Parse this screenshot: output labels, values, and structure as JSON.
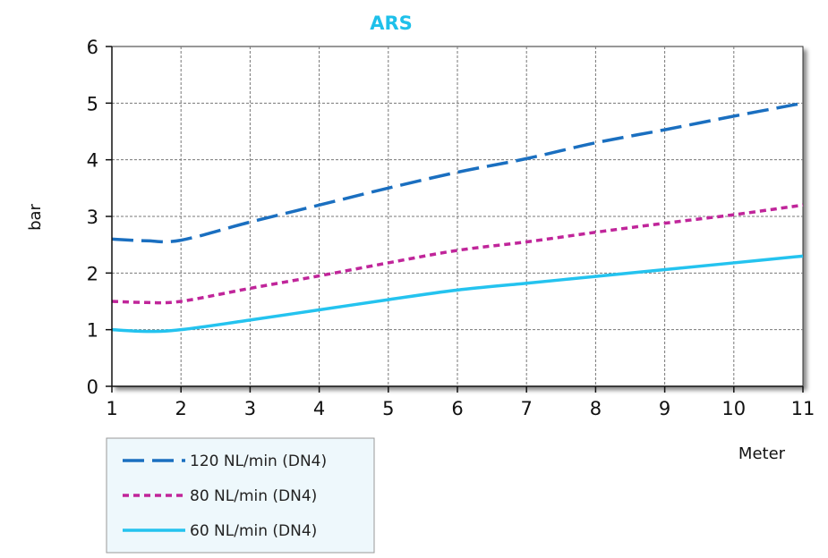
{
  "chart_data": {
    "type": "line",
    "title": "ARS",
    "title_color": "#1ec0ea",
    "xlabel": "Meter",
    "ylabel": "bar",
    "xlim": [
      1,
      11
    ],
    "ylim": [
      0,
      6
    ],
    "x_ticks": [
      "1",
      "2",
      "3",
      "4",
      "5",
      "6",
      "7",
      "8",
      "9",
      "10",
      "11"
    ],
    "y_ticks": [
      "0",
      "1",
      "2",
      "3",
      "4",
      "5",
      "6"
    ],
    "grid": true,
    "legend_position": "bottom-left",
    "series": [
      {
        "name": "120 NL/min (DN4)",
        "color": "#1a6fc0",
        "dash": "long-dash",
        "points": [
          [
            1,
            2.6
          ],
          [
            1.5,
            2.57
          ],
          [
            2,
            2.58
          ],
          [
            3,
            2.9
          ],
          [
            4,
            3.2
          ],
          [
            5,
            3.5
          ],
          [
            6,
            3.78
          ],
          [
            7,
            4.02
          ],
          [
            8,
            4.3
          ],
          [
            9,
            4.53
          ],
          [
            10,
            4.77
          ],
          [
            11,
            5.0
          ]
        ]
      },
      {
        "name": "80 NL/min (DN4)",
        "color": "#c0259a",
        "dash": "short-dash",
        "points": [
          [
            1,
            1.5
          ],
          [
            1.5,
            1.48
          ],
          [
            2,
            1.5
          ],
          [
            3,
            1.73
          ],
          [
            4,
            1.95
          ],
          [
            5,
            2.18
          ],
          [
            6,
            2.4
          ],
          [
            7,
            2.55
          ],
          [
            8,
            2.72
          ],
          [
            9,
            2.88
          ],
          [
            10,
            3.03
          ],
          [
            11,
            3.2
          ]
        ]
      },
      {
        "name": "60 NL/min (DN4)",
        "color": "#24c3ef",
        "dash": "solid",
        "points": [
          [
            1,
            1.0
          ],
          [
            1.5,
            0.97
          ],
          [
            2,
            1.0
          ],
          [
            3,
            1.17
          ],
          [
            4,
            1.35
          ],
          [
            5,
            1.53
          ],
          [
            6,
            1.7
          ],
          [
            7,
            1.82
          ],
          [
            8,
            1.94
          ],
          [
            9,
            2.06
          ],
          [
            10,
            2.18
          ],
          [
            11,
            2.3
          ]
        ]
      }
    ]
  }
}
